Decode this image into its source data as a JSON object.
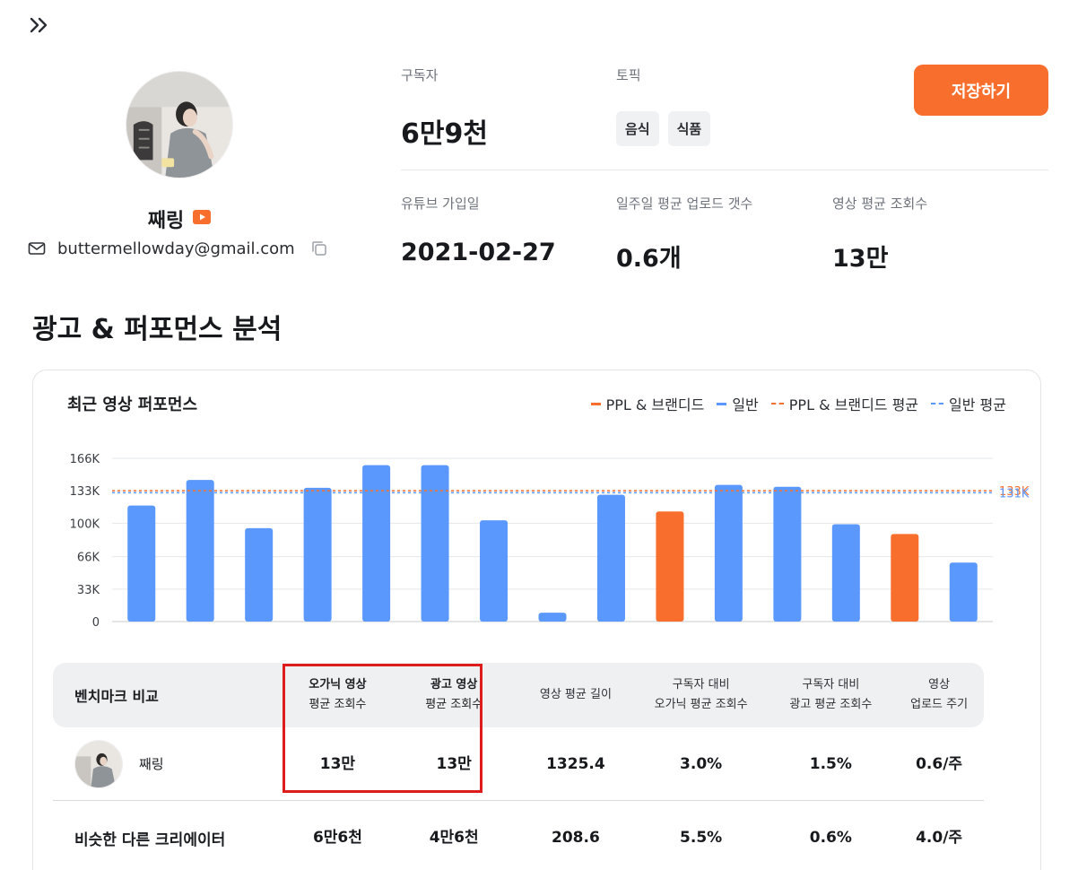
{
  "profile": {
    "name": "째링",
    "email": "buttermellowday@gmail.com"
  },
  "stats": {
    "subscribers_label": "구독자",
    "subscribers_value": "6만9천",
    "topic_label": "토픽",
    "topics": [
      "음식",
      "식품"
    ],
    "joined_label": "유튜브 가입일",
    "joined_value": "2021-02-27",
    "weekly_uploads_label": "일주일 평균 업로드 갯수",
    "weekly_uploads_value": "0.6개",
    "avg_views_label": "영상 평균 조회수",
    "avg_views_value": "13만"
  },
  "actions": {
    "save_label": "저장하기"
  },
  "section": {
    "title": "광고 & 퍼포먼스 분석"
  },
  "card": {
    "title": "최근 영상 퍼포먼스",
    "legend": {
      "ppl": "PPL & 브랜디드",
      "general": "일반",
      "ppl_avg": "PPL & 브랜디드 평균",
      "general_avg": "일반 평균"
    }
  },
  "colors": {
    "accent": "#f86f2d",
    "general": "#5b98fd",
    "highlight": "#df1c1c"
  },
  "chart_data": {
    "type": "bar",
    "ylim": [
      0,
      166000
    ],
    "yticks": [
      0,
      33000,
      66000,
      100000,
      133000,
      166000
    ],
    "ytick_labels": [
      "0",
      "33K",
      "66K",
      "100K",
      "133K",
      "166K"
    ],
    "series": [
      {
        "kind": "general",
        "values": [
          118000,
          144000,
          95000,
          136000,
          159000,
          159000,
          103000,
          9000,
          129000,
          112000,
          139000,
          137000,
          99000,
          89000,
          60000
        ]
      },
      {
        "kind": "ppl"
      }
    ],
    "bar_types": [
      "general",
      "general",
      "general",
      "general",
      "general",
      "general",
      "general",
      "general",
      "general",
      "ppl",
      "general",
      "general",
      "general",
      "ppl",
      "general"
    ],
    "avg_lines": [
      {
        "kind": "ppl_avg",
        "value": 133000,
        "label": "133K"
      },
      {
        "kind": "general_avg",
        "value": 131000,
        "label": "131K"
      }
    ],
    "legend_position": "top-right",
    "grid": true
  },
  "benchmark": {
    "header": {
      "title": "벤치마크 비교",
      "c1_line1": "오가닉 영상",
      "c1_line2": "평균 조회수",
      "c2_line1": "광고 영상",
      "c2_line2": "평균 조회수",
      "c3_line1": "영상 평균 길이",
      "c4_line1": "구독자 대비",
      "c4_line2": "오가닉 평균 조회수",
      "c5_line1": "구독자 대비",
      "c5_line2": "광고 평균 조회수",
      "c6_line1": "영상",
      "c6_line2": "업로드 주기"
    },
    "rows": [
      {
        "name": "째링",
        "c1": "13만",
        "c2": "13만",
        "c3": "1325.4",
        "c4": "3.0%",
        "c5": "1.5%",
        "c6": "0.6/주"
      },
      {
        "name": "비슷한 다른 크리에이터",
        "c1": "6만6천",
        "c2": "4만6천",
        "c3": "208.6",
        "c4": "5.5%",
        "c5": "0.6%",
        "c6": "4.0/주"
      }
    ]
  }
}
